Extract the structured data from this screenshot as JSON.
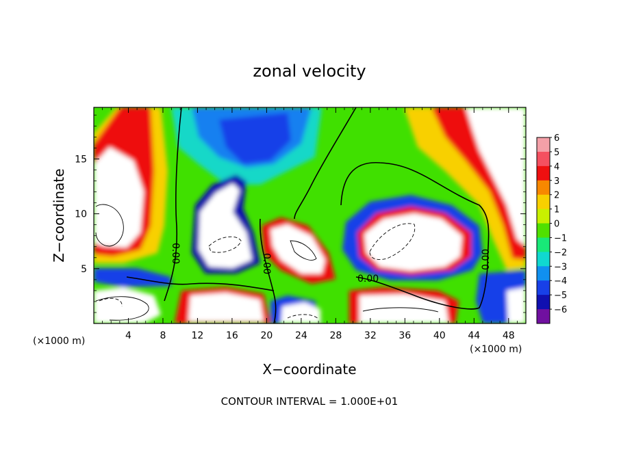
{
  "chart_data": {
    "type": "heatmap",
    "title": "zonal velocity",
    "xlabel": "X−coordinate",
    "ylabel": "Z−coordinate",
    "x_unit": "(×1000 m)",
    "y_unit": "(×1000 m)",
    "xlim": [
      0,
      50
    ],
    "ylim": [
      0,
      19.7
    ],
    "x_ticks": [
      4,
      8,
      12,
      16,
      20,
      24,
      28,
      32,
      36,
      40,
      44,
      48
    ],
    "x_tick_labels": [
      "4",
      "8",
      "12",
      "16",
      "20",
      "24",
      "28",
      "32",
      "36",
      "40",
      "44",
      "48"
    ],
    "y_ticks": [
      5,
      10,
      15
    ],
    "y_tick_labels": [
      "5",
      "10",
      "15"
    ],
    "colorbar": {
      "levels": [
        6,
        5,
        4,
        3,
        2,
        1,
        0,
        -1,
        -2,
        -3,
        -4,
        -5,
        -6
      ],
      "labels": [
        "6",
        "5",
        "4",
        "3",
        "2",
        "1",
        "0",
        "−1",
        "−2",
        "−3",
        "−4",
        "−5",
        "−6"
      ],
      "colors": [
        "#f4a0a8",
        "#f45060",
        "#ee1010",
        "#f88800",
        "#f8d000",
        "#c8f000",
        "#50e000",
        "#18e878",
        "#10d8d0",
        "#1090f0",
        "#1840e8",
        "#1010b0",
        "#7010a0"
      ]
    },
    "contour_label": "0.00",
    "footer": "CONTOUR INTERVAL = 1.000E+01"
  }
}
